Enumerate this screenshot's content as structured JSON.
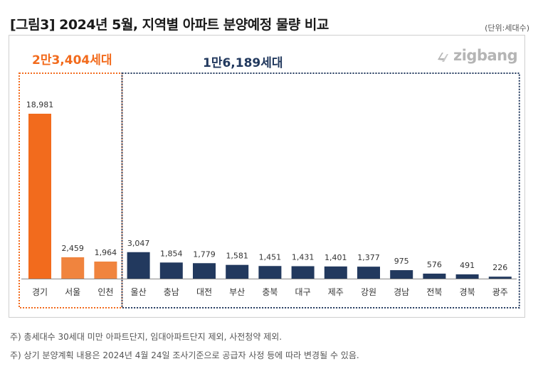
{
  "title": "[그림3] 2024년 5월, 지역별 아파트 분양예정 물량 비교",
  "unit": "(단위:세대수)",
  "logo_text": "zigbang",
  "colors": {
    "capital": "#F26B1D",
    "capital_light": "#F0843E",
    "other": "#22395E",
    "label": "#333333"
  },
  "chart_data": {
    "type": "bar",
    "categories": [
      "경기",
      "서울",
      "인천",
      "울산",
      "충남",
      "대전",
      "부산",
      "충북",
      "대구",
      "제주",
      "강원",
      "경남",
      "전북",
      "경북",
      "광주"
    ],
    "values": [
      18981,
      2459,
      1964,
      3047,
      1854,
      1779,
      1581,
      1451,
      1431,
      1401,
      1377,
      975,
      576,
      491,
      226
    ],
    "value_labels": [
      "18,981",
      "2,459",
      "1,964",
      "3,047",
      "1,854",
      "1,779",
      "1,581",
      "1,451",
      "1,431",
      "1,401",
      "1,377",
      "975",
      "576",
      "491",
      "226"
    ],
    "groups": [
      {
        "label": "2만3,404세대",
        "start": 0,
        "end": 2,
        "color": "#F26B1D"
      },
      {
        "label": "1만6,189세대",
        "start": 3,
        "end": 14,
        "color": "#22395E"
      }
    ],
    "ylim": [
      0,
      19000
    ],
    "grid": false,
    "legend": "none"
  },
  "notes": [
    "주) 총세대수 30세대 미만 아파트단지, 임대아파트단지 제외, 사전청약 제외.",
    "주) 상기 분양계획 내용은 2024년 4월 24일 조사기준으로 공급자 사정 등에 따라 변경될 수 있음."
  ]
}
